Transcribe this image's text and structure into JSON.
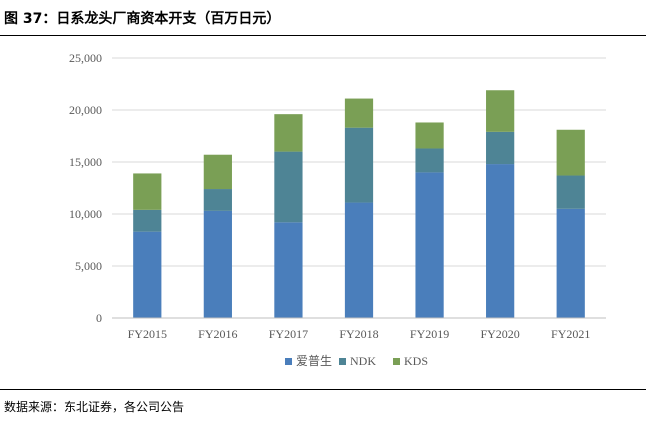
{
  "figure": {
    "title": "图 37：日系龙头厂商资本开支（百万日元）",
    "source": "数据来源：东北证券，各公司公告"
  },
  "chart_data": {
    "type": "bar",
    "stacked": true,
    "categories": [
      "FY2015",
      "FY2016",
      "FY2017",
      "FY2018",
      "FY2019",
      "FY2020",
      "FY2021"
    ],
    "series": [
      {
        "name": "爱普生",
        "color": "#4a7ebb",
        "values": [
          8300,
          10300,
          9200,
          11100,
          14000,
          14800,
          10500
        ]
      },
      {
        "name": "NDK",
        "color": "#4e8495",
        "values": [
          2100,
          2100,
          6800,
          7200,
          2300,
          3100,
          3200
        ]
      },
      {
        "name": "KDS",
        "color": "#7a9f55",
        "values": [
          3500,
          3300,
          3600,
          2800,
          2500,
          4000,
          4400
        ]
      }
    ],
    "yticks": [
      "0",
      "5,000",
      "10,000",
      "15,000",
      "20,000",
      "25,000"
    ],
    "ylim": [
      0,
      25000
    ],
    "grid": true,
    "legend": "bottom"
  }
}
